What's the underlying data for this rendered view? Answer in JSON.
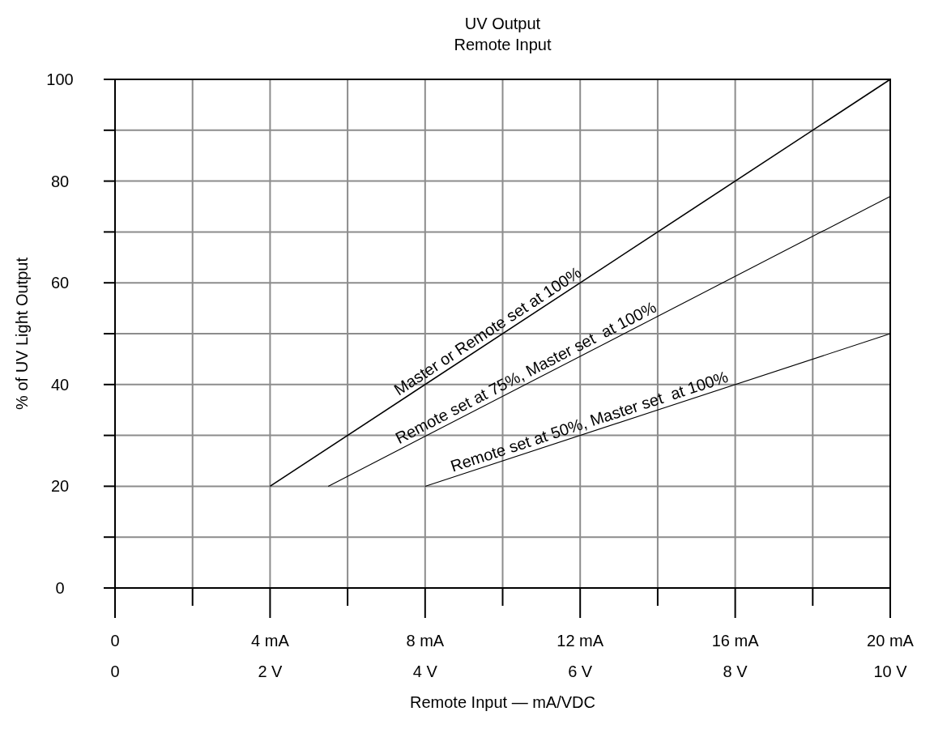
{
  "chart_data": {
    "type": "line",
    "title": "UV Output",
    "subtitle": "Remote Input",
    "xlabel": "Remote Input — mA/VDC",
    "ylabel": "% of UV Light Output",
    "series": [
      {
        "name": "Master or Remote set at 100%",
        "color": "#000000",
        "x": [
          4,
          20
        ],
        "values": [
          20,
          100
        ]
      },
      {
        "name": "Remote set at 75%, Master set  at 100%",
        "color": "#000000",
        "x": [
          5.5,
          20
        ],
        "values": [
          20,
          77
        ]
      },
      {
        "name": "Remote set at 50%, Master set  at 100%",
        "color": "#000000",
        "x": [
          8,
          20
        ],
        "values": [
          20,
          50
        ]
      }
    ],
    "xlim": [
      0,
      20
    ],
    "xticks": [
      0,
      {
        "value": 2,
        "label": null
      },
      {
        "value": 4,
        "label": "4 mA"
      },
      {
        "value": 6,
        "label": null
      },
      {
        "value": 8,
        "label": "8 mA"
      },
      {
        "value": 10,
        "label": null
      },
      {
        "value": 12,
        "label": "12 mA"
      },
      {
        "value": 14,
        "label": null
      },
      {
        "value": 16,
        "label": "16 mA"
      },
      {
        "value": 18,
        "label": null
      },
      {
        "value": 20,
        "label": "20 mA"
      }
    ],
    "x2lim": [
      0,
      10
    ],
    "x2ticks": [
      0,
      {
        "value": 2,
        "label": "2 V"
      },
      {
        "value": 4,
        "label": "4 V"
      },
      {
        "value": 6,
        "label": "6 V"
      },
      {
        "value": 8,
        "label": "8 V"
      },
      {
        "value": 10,
        "label": "10 V"
      }
    ],
    "ylim": [
      0,
      100
    ],
    "yticks": [
      0,
      {
        "value": 10,
        "label": null
      },
      20,
      {
        "value": 30,
        "label": null
      },
      40,
      {
        "value": 50,
        "label": null
      },
      60,
      {
        "value": 70,
        "label": null
      },
      80,
      {
        "value": 90,
        "label": null
      },
      100
    ],
    "grid": true,
    "marker": "none",
    "line_style": "solid"
  }
}
